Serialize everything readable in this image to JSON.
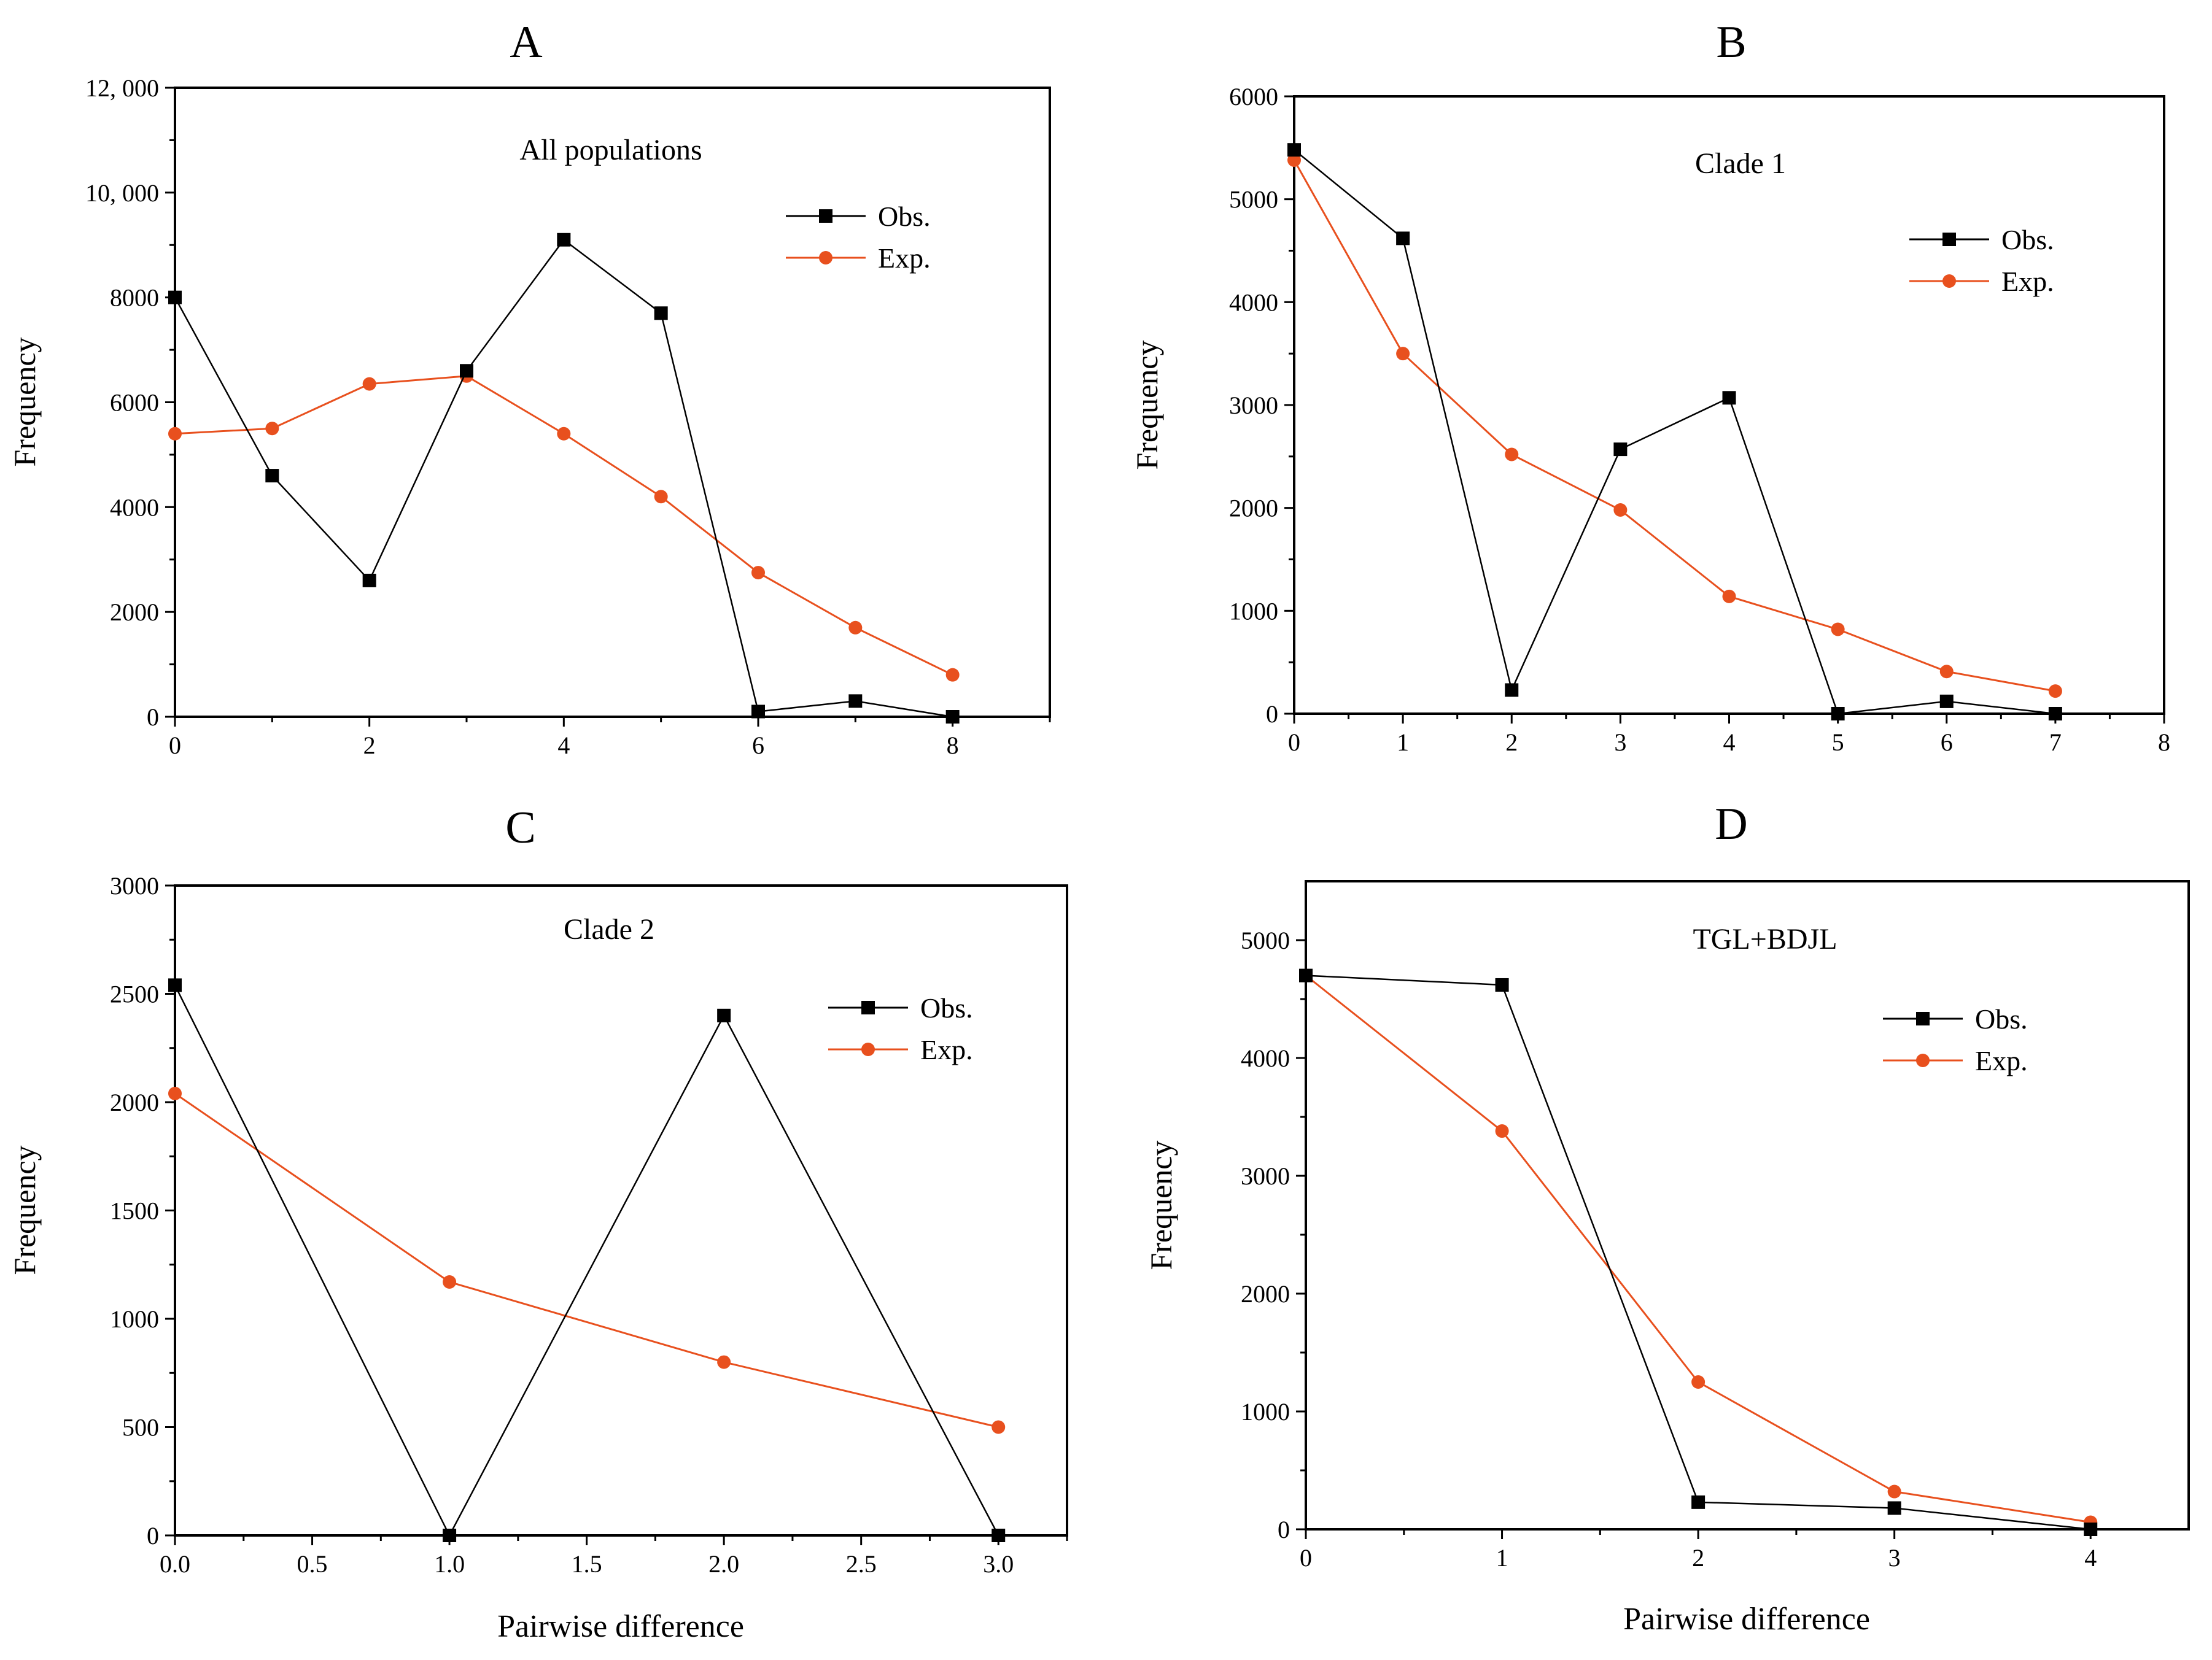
{
  "figure": {
    "colors": {
      "obs": "#000000",
      "exp": "#e8501e",
      "axis": "#000000"
    },
    "legend": {
      "obs": "Obs.",
      "exp": "Exp."
    }
  },
  "chart_data": [
    {
      "id": "A",
      "type": "line",
      "panel_label": "A",
      "title": "All populations",
      "xlabel": "",
      "ylabel": "Frequency",
      "xlim": [
        0,
        9
      ],
      "ylim": [
        0,
        12000
      ],
      "xticks": [
        0,
        2,
        4,
        6,
        8
      ],
      "xtick_labels": [
        "0",
        "2",
        "4",
        "6",
        "8"
      ],
      "xminor": [
        1,
        3,
        5,
        7,
        9
      ],
      "yticks": [
        0,
        2000,
        4000,
        6000,
        8000,
        10000,
        12000
      ],
      "ytick_labels": [
        "0",
        "2000",
        "4000",
        "6000",
        "8000",
        "10, 000",
        "12, 000"
      ],
      "yminor": [
        1000,
        3000,
        5000,
        7000,
        9000,
        11000
      ],
      "legend_position": "top-right",
      "series": [
        {
          "name": "Obs.",
          "marker": "square",
          "x": [
            0,
            1,
            2,
            3,
            4,
            5,
            6,
            7,
            8
          ],
          "values": [
            8000,
            4600,
            2600,
            6600,
            9100,
            7700,
            100,
            300,
            0
          ]
        },
        {
          "name": "Exp.",
          "marker": "circle",
          "x": [
            0,
            1,
            2,
            3,
            4,
            5,
            6,
            7,
            8
          ],
          "values": [
            5400,
            5500,
            6350,
            6500,
            5400,
            4200,
            2750,
            1700,
            800
          ]
        }
      ]
    },
    {
      "id": "B",
      "type": "line",
      "panel_label": "B",
      "title": "Clade 1",
      "xlabel": "",
      "ylabel": "Frequency",
      "xlim": [
        0,
        8
      ],
      "ylim": [
        0,
        6000
      ],
      "xticks": [
        0,
        1,
        2,
        3,
        4,
        5,
        6,
        7,
        8
      ],
      "xtick_labels": [
        "0",
        "1",
        "2",
        "3",
        "4",
        "5",
        "6",
        "7",
        "8"
      ],
      "xminor": [
        0.5,
        1.5,
        2.5,
        3.5,
        4.5,
        5.5,
        6.5,
        7.5
      ],
      "yticks": [
        0,
        1000,
        2000,
        3000,
        4000,
        5000,
        6000
      ],
      "ytick_labels": [
        "0",
        "1000",
        "2000",
        "3000",
        "4000",
        "5000",
        "6000"
      ],
      "yminor": [
        500,
        1500,
        2500,
        3500,
        4500,
        5500
      ],
      "legend_position": "top-right",
      "series": [
        {
          "name": "Obs.",
          "marker": "square",
          "x": [
            0,
            1,
            2,
            3,
            4,
            5,
            6,
            7
          ],
          "values": [
            5480,
            4620,
            230,
            2570,
            3070,
            0,
            120,
            0
          ]
        },
        {
          "name": "Exp.",
          "marker": "circle",
          "x": [
            0,
            1,
            2,
            3,
            4,
            5,
            6,
            7
          ],
          "values": [
            5380,
            3500,
            2520,
            1980,
            1140,
            820,
            410,
            220
          ]
        }
      ]
    },
    {
      "id": "C",
      "type": "line",
      "panel_label": "C",
      "title": "Clade 2",
      "xlabel": "Pairwise difference",
      "ylabel": "Frequency",
      "xlim": [
        0,
        3.25
      ],
      "ylim": [
        0,
        3000
      ],
      "xticks": [
        0,
        0.5,
        1,
        1.5,
        2,
        2.5,
        3
      ],
      "xtick_labels": [
        "0.0",
        "0.5",
        "1.0",
        "1.5",
        "2.0",
        "2.5",
        "3.0"
      ],
      "xminor": [
        0.25,
        0.75,
        1.25,
        1.75,
        2.25,
        2.75,
        3.25
      ],
      "yticks": [
        0,
        500,
        1000,
        1500,
        2000,
        2500,
        3000
      ],
      "ytick_labels": [
        "0",
        "500",
        "1000",
        "1500",
        "2000",
        "2500",
        "3000"
      ],
      "yminor": [
        250,
        750,
        1250,
        1750,
        2250,
        2750
      ],
      "legend_position": "top-right",
      "series": [
        {
          "name": "Obs.",
          "marker": "square",
          "x": [
            0,
            1,
            2,
            3
          ],
          "values": [
            2540,
            0,
            2400,
            0
          ]
        },
        {
          "name": "Exp.",
          "marker": "circle",
          "x": [
            0,
            1,
            2,
            3
          ],
          "values": [
            2040,
            1170,
            800,
            500
          ]
        }
      ]
    },
    {
      "id": "D",
      "type": "line",
      "panel_label": "D",
      "title": "TGL+BDJL",
      "xlabel": "Pairwise difference",
      "ylabel": "Frequency",
      "xlim": [
        0,
        4.5
      ],
      "ylim": [
        0,
        5500
      ],
      "xticks": [
        0,
        1,
        2,
        3,
        4
      ],
      "xtick_labels": [
        "0",
        "1",
        "2",
        "3",
        "4"
      ],
      "xminor": [
        0.5,
        1.5,
        2.5,
        3.5
      ],
      "yticks": [
        0,
        1000,
        2000,
        3000,
        4000,
        5000
      ],
      "ytick_labels": [
        "0",
        "1000",
        "2000",
        "3000",
        "4000",
        "5000"
      ],
      "yminor": [
        500,
        1500,
        2500,
        3500,
        4500
      ],
      "legend_position": "top-right",
      "series": [
        {
          "name": "Obs.",
          "marker": "square",
          "x": [
            0,
            1,
            2,
            3,
            4
          ],
          "values": [
            4700,
            4620,
            230,
            180,
            0
          ]
        },
        {
          "name": "Exp.",
          "marker": "circle",
          "x": [
            0,
            1,
            2,
            3,
            4
          ],
          "values": [
            4700,
            3380,
            1250,
            320,
            60
          ]
        }
      ]
    }
  ]
}
